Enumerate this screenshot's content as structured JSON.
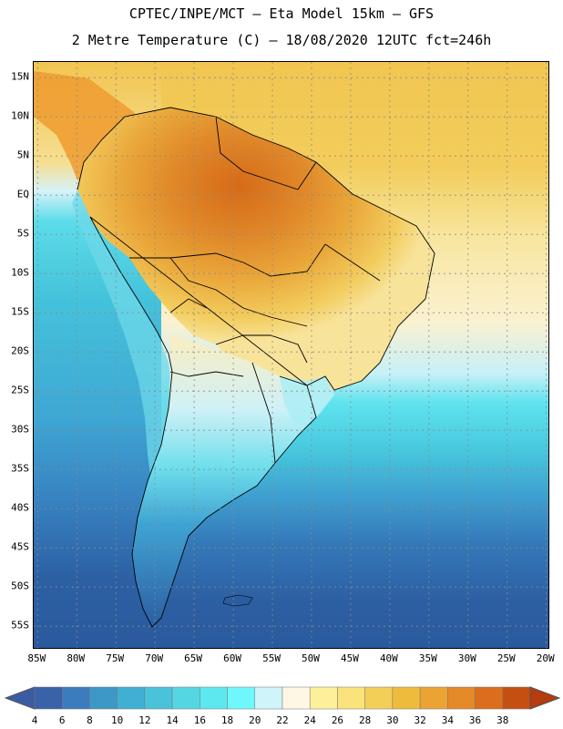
{
  "title": {
    "line1": "CPTEC/INPE/MCT –  Eta Model 15km – GFS",
    "line2": "2 Metre Temperature (C) – 18/08/2020 12UTC fct=246h"
  },
  "axes": {
    "lat_labels": [
      "15N",
      "10N",
      "5N",
      "EQ",
      "5S",
      "10S",
      "15S",
      "20S",
      "25S",
      "30S",
      "35S",
      "40S",
      "45S",
      "50S",
      "55S"
    ],
    "lat_values": [
      15,
      10,
      5,
      0,
      -5,
      -10,
      -15,
      -20,
      -25,
      -30,
      -35,
      -40,
      -45,
      -50,
      -55
    ],
    "lon_labels": [
      "85W",
      "80W",
      "75W",
      "70W",
      "65W",
      "60W",
      "55W",
      "50W",
      "45W",
      "40W",
      "35W",
      "30W",
      "25W",
      "20W"
    ],
    "lon_values": [
      -85,
      -80,
      -75,
      -70,
      -65,
      -60,
      -55,
      -50,
      -45,
      -40,
      -35,
      -30,
      -25,
      -20
    ],
    "lat_range": [
      -58,
      17
    ],
    "lon_range": [
      -85.5,
      -19.5
    ]
  },
  "colorbar": {
    "labels": [
      "4",
      "6",
      "8",
      "10",
      "12",
      "14",
      "16",
      "18",
      "20",
      "22",
      "24",
      "26",
      "28",
      "30",
      "32",
      "34",
      "36",
      "38"
    ],
    "colors": [
      "#3a62a8",
      "#3b7cbd",
      "#3d98c8",
      "#3fb0d4",
      "#49c3da",
      "#55d6e3",
      "#5ce8ee",
      "#6ff8fb",
      "#cff4fa",
      "#fdf7e3",
      "#fcf09a",
      "#fae37a",
      "#f4cf58",
      "#efbb3d",
      "#eba334",
      "#e48a27",
      "#dc6d1c",
      "#c54f11"
    ],
    "under_color": "#3a5ca3",
    "over_color": "#b43c0e"
  },
  "colors": {
    "ocean_cold": "#2b5ea0",
    "ocean_mid": "#3d9bd1",
    "ocean_cool": "#4fd0e2",
    "ocean_warm": "#f6dd8a",
    "ocean_tropic": "#f1c75a",
    "land_hot": "#d9781f"
  }
}
